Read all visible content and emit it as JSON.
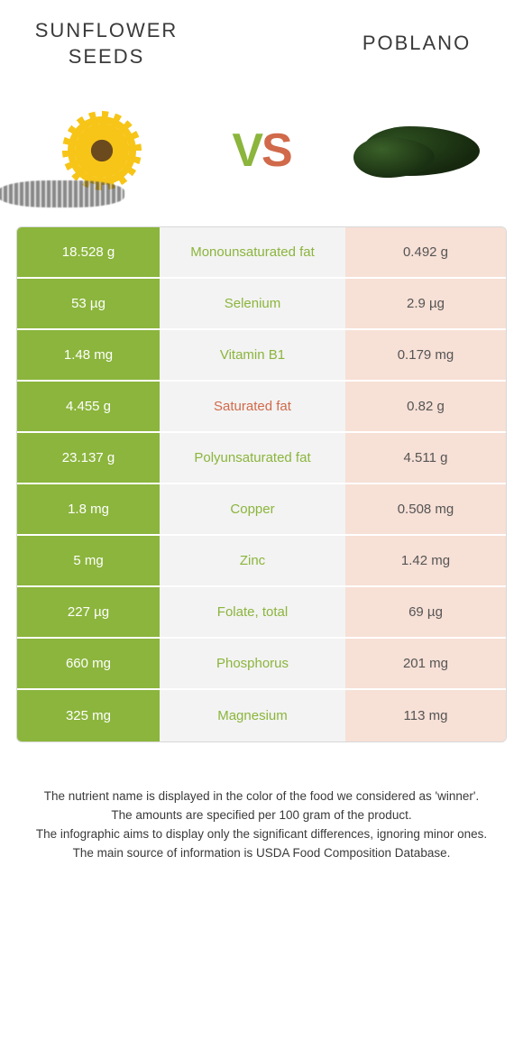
{
  "header": {
    "left_title": "SUNFLOWER SEEDS",
    "right_title": "POBLANO",
    "vs_v": "V",
    "vs_s": "S"
  },
  "colors": {
    "left_bg": "#8bb53c",
    "right_bg": "#f7e0d6",
    "mid_bg": "#f3f3f3",
    "left_text": "#ffffff",
    "mid_left_win": "#8bb53c",
    "mid_right_win": "#d06a4a",
    "right_text": "#555555",
    "border": "#d8d8d8"
  },
  "rows": [
    {
      "left": "18.528 g",
      "name": "Monounsaturated fat",
      "right": "0.492 g",
      "winner": "left"
    },
    {
      "left": "53 µg",
      "name": "Selenium",
      "right": "2.9 µg",
      "winner": "left"
    },
    {
      "left": "1.48 mg",
      "name": "Vitamin B1",
      "right": "0.179 mg",
      "winner": "left"
    },
    {
      "left": "4.455 g",
      "name": "Saturated fat",
      "right": "0.82 g",
      "winner": "right"
    },
    {
      "left": "23.137 g",
      "name": "Polyunsaturated fat",
      "right": "4.511 g",
      "winner": "left"
    },
    {
      "left": "1.8 mg",
      "name": "Copper",
      "right": "0.508 mg",
      "winner": "left"
    },
    {
      "left": "5 mg",
      "name": "Zinc",
      "right": "1.42 mg",
      "winner": "left"
    },
    {
      "left": "227 µg",
      "name": "Folate, total",
      "right": "69 µg",
      "winner": "left"
    },
    {
      "left": "660 mg",
      "name": "Phosphorus",
      "right": "201 mg",
      "winner": "left"
    },
    {
      "left": "325 mg",
      "name": "Magnesium",
      "right": "113 mg",
      "winner": "left"
    }
  ],
  "footer": {
    "line1": "The nutrient name is displayed in the color of the food we considered as 'winner'.",
    "line2": "The amounts are specified per 100 gram of the product.",
    "line3": "The infographic aims to display only the significant differences, ignoring minor ones.",
    "line4": "The main source of information is USDA Food Composition Database."
  }
}
